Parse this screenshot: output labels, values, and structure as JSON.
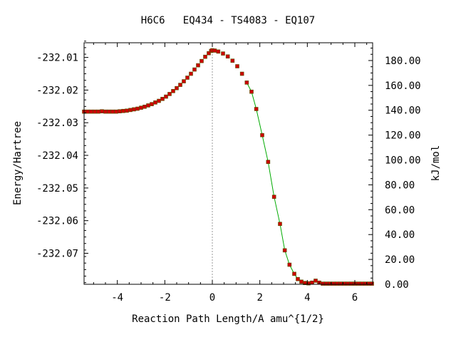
{
  "chart_data": {
    "type": "scatter",
    "title": "H6C6   EQ434 - TS4083 - EQ107",
    "xlabel": "Reaction Path Length/A amu^{1/2}",
    "ylabel": "Energy/Hartree",
    "y2label": "kJ/mol",
    "xlim": [
      -5.4,
      6.75
    ],
    "ylim": [
      -232.0795,
      -232.0055
    ],
    "y2lim": [
      0,
      194.3
    ],
    "x_ticks": [
      -4,
      -2,
      0,
      2,
      4,
      6
    ],
    "y_ticks": [
      -232.01,
      -232.02,
      -232.03,
      -232.04,
      -232.05,
      -232.06,
      -232.07
    ],
    "y_tick_labels": [
      "-232.01",
      "-232.02",
      "-232.03",
      "-232.04",
      "-232.05",
      "-232.06",
      "-232.07"
    ],
    "y2_ticks": [
      0,
      20,
      40,
      60,
      80,
      100,
      120,
      140,
      160,
      180
    ],
    "y2_tick_labels": [
      "0.00",
      "20.00",
      "40.00",
      "60.00",
      "80.00",
      "100.00",
      "120.00",
      "140.00",
      "160.00",
      "180.00"
    ],
    "ts_x": 0,
    "colors": {
      "marker": "#cc0000",
      "marker_edge": "#555500",
      "line": "#00aa00",
      "ts_line": "#999999",
      "axis": "#000000"
    },
    "series": [
      {
        "marker": "square",
        "points": [
          [
            -5.4,
            -232.0266
          ],
          [
            -5.25,
            -232.0266
          ],
          [
            -5.1,
            -232.0266
          ],
          [
            -4.95,
            -232.0266
          ],
          [
            -4.8,
            -232.0266
          ],
          [
            -4.65,
            -232.0265
          ],
          [
            -4.5,
            -232.0266
          ],
          [
            -4.35,
            -232.0266
          ],
          [
            -4.2,
            -232.0266
          ],
          [
            -4.05,
            -232.0266
          ],
          [
            -3.9,
            -232.0265
          ],
          [
            -3.75,
            -232.0264
          ],
          [
            -3.6,
            -232.0263
          ],
          [
            -3.45,
            -232.0261
          ],
          [
            -3.3,
            -232.0259
          ],
          [
            -3.15,
            -232.0257
          ],
          [
            -3.0,
            -232.0254
          ],
          [
            -2.85,
            -232.0251
          ],
          [
            -2.7,
            -232.0247
          ],
          [
            -2.55,
            -232.0243
          ],
          [
            -2.4,
            -232.0238
          ],
          [
            -2.25,
            -232.0233
          ],
          [
            -2.1,
            -232.0227
          ],
          [
            -1.95,
            -232.022
          ],
          [
            -1.8,
            -232.0212
          ],
          [
            -1.65,
            -232.0203
          ],
          [
            -1.5,
            -232.0194
          ],
          [
            -1.35,
            -232.0184
          ],
          [
            -1.2,
            -232.0173
          ],
          [
            -1.05,
            -232.0162
          ],
          [
            -0.9,
            -232.015
          ],
          [
            -0.75,
            -232.0137
          ],
          [
            -0.6,
            -232.0124
          ],
          [
            -0.45,
            -232.0111
          ],
          [
            -0.3,
            -232.0098
          ],
          [
            -0.15,
            -232.0087
          ],
          [
            -0.05,
            -232.008
          ],
          [
            0.0,
            -232.0078
          ],
          [
            0.1,
            -232.0079
          ],
          [
            0.25,
            -232.0082
          ],
          [
            0.45,
            -232.0088
          ],
          [
            0.65,
            -232.0097
          ],
          [
            0.85,
            -232.011
          ],
          [
            1.05,
            -232.0127
          ],
          [
            1.25,
            -232.015
          ],
          [
            1.45,
            -232.0177
          ],
          [
            1.65,
            -232.0205
          ],
          [
            1.85,
            -232.0258
          ],
          [
            2.1,
            -232.0338
          ],
          [
            2.35,
            -232.042
          ],
          [
            2.6,
            -232.0527
          ],
          [
            2.85,
            -232.061
          ],
          [
            3.05,
            -232.0691
          ],
          [
            3.25,
            -232.0735
          ],
          [
            3.45,
            -232.0763
          ],
          [
            3.6,
            -232.0779
          ],
          [
            3.75,
            -232.0787
          ],
          [
            3.9,
            -232.0791
          ],
          [
            4.05,
            -232.0792
          ],
          [
            4.2,
            -232.079
          ],
          [
            4.35,
            -232.0784
          ],
          [
            4.5,
            -232.079
          ],
          [
            4.65,
            -232.0793
          ],
          [
            4.8,
            -232.0793
          ],
          [
            4.95,
            -232.0793
          ],
          [
            5.1,
            -232.0793
          ],
          [
            5.25,
            -232.0793
          ],
          [
            5.4,
            -232.0793
          ],
          [
            5.55,
            -232.0793
          ],
          [
            5.7,
            -232.0793
          ],
          [
            5.85,
            -232.0793
          ],
          [
            6.0,
            -232.0793
          ],
          [
            6.15,
            -232.0793
          ],
          [
            6.3,
            -232.0793
          ],
          [
            6.45,
            -232.0793
          ],
          [
            6.6,
            -232.0793
          ],
          [
            6.72,
            -232.0793
          ]
        ]
      }
    ],
    "green_curve_x_start": 1.45
  }
}
